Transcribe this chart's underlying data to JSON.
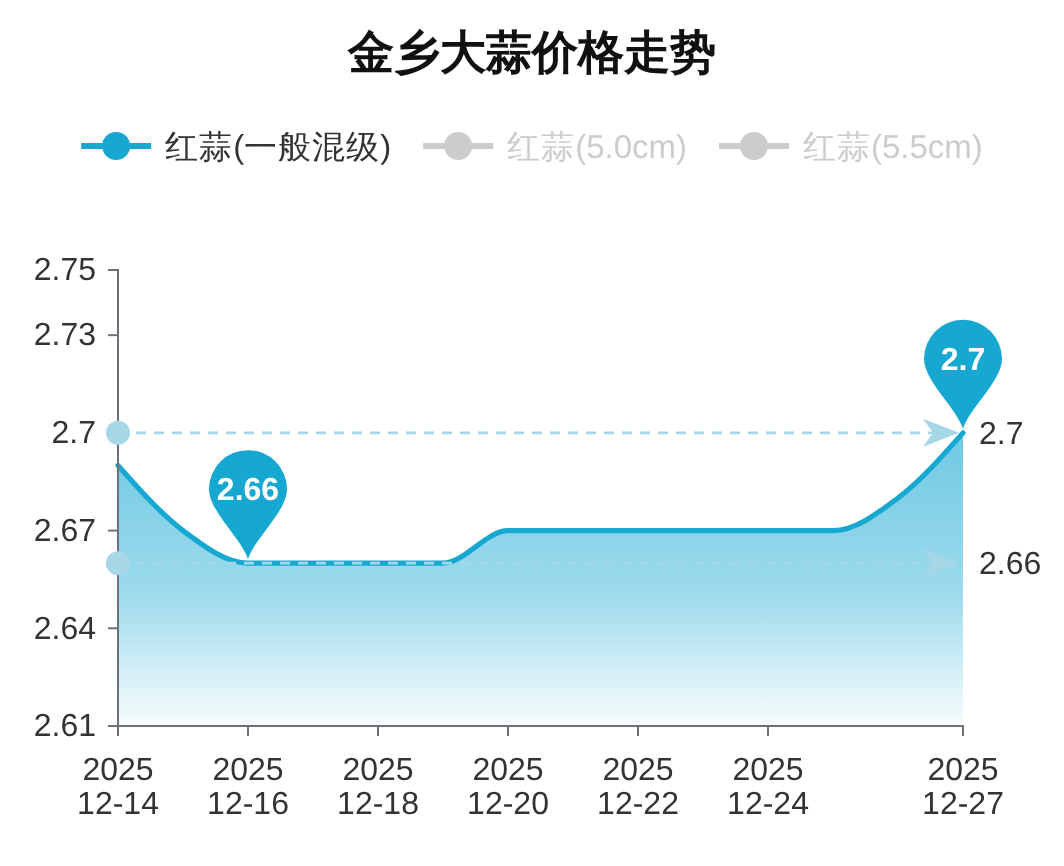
{
  "chart_data": {
    "type": "area",
    "title": "金乡大蒜价格走势",
    "x": [
      "2025-12-14",
      "2025-12-15",
      "2025-12-16",
      "2025-12-17",
      "2025-12-18",
      "2025-12-19",
      "2025-12-20",
      "2025-12-21",
      "2025-12-22",
      "2025-12-23",
      "2025-12-24",
      "2025-12-25",
      "2025-12-26",
      "2025-12-27"
    ],
    "xlim": [
      "2025-12-14",
      "2025-12-27"
    ],
    "xticks": [
      {
        "value": "2025-12-14",
        "label": "2025\n12-14"
      },
      {
        "value": "2025-12-16",
        "label": "2025\n12-16"
      },
      {
        "value": "2025-12-18",
        "label": "2025\n12-18"
      },
      {
        "value": "2025-12-20",
        "label": "2025\n12-20"
      },
      {
        "value": "2025-12-22",
        "label": "2025\n12-22"
      },
      {
        "value": "2025-12-24",
        "label": "2025\n12-24"
      },
      {
        "value": "2025-12-27",
        "label": "2025\n12-27"
      }
    ],
    "ylim": [
      2.61,
      2.75
    ],
    "yticks": [
      2.61,
      2.64,
      2.67,
      2.7,
      2.73,
      2.75
    ],
    "series": [
      {
        "name": "红蒜(一般混级)",
        "color": "#17a8d2",
        "values": [
          2.69,
          2.67,
          2.66,
          2.66,
          2.66,
          2.66,
          2.67,
          2.67,
          2.67,
          2.67,
          2.67,
          2.67,
          2.68,
          2.7
        ]
      },
      {
        "name": "红蒜(5.0cm)",
        "color": "#cccccc",
        "values": [
          null,
          null,
          null,
          null,
          null,
          null,
          null,
          null,
          null,
          null,
          null,
          null,
          null,
          null
        ]
      },
      {
        "name": "红蒜(5.5cm)",
        "color": "#cccccc",
        "values": [
          null,
          null,
          null,
          null,
          null,
          null,
          null,
          null,
          null,
          null,
          null,
          null,
          null,
          null
        ]
      }
    ],
    "legend": "top",
    "ref_lines": [
      {
        "axis": "y",
        "value": 2.7,
        "label": "2.7",
        "color": "#a6d7e6",
        "line_style": "dashed"
      },
      {
        "axis": "y",
        "value": 2.66,
        "label": "2.66",
        "color": "#a6d7e6",
        "line_style": "dashed"
      }
    ],
    "annotations": [
      {
        "text": "2.7",
        "x": "2025-12-27",
        "y": 2.7
      },
      {
        "text": "2.66",
        "x": "2025-12-16",
        "y": 2.66
      }
    ]
  }
}
